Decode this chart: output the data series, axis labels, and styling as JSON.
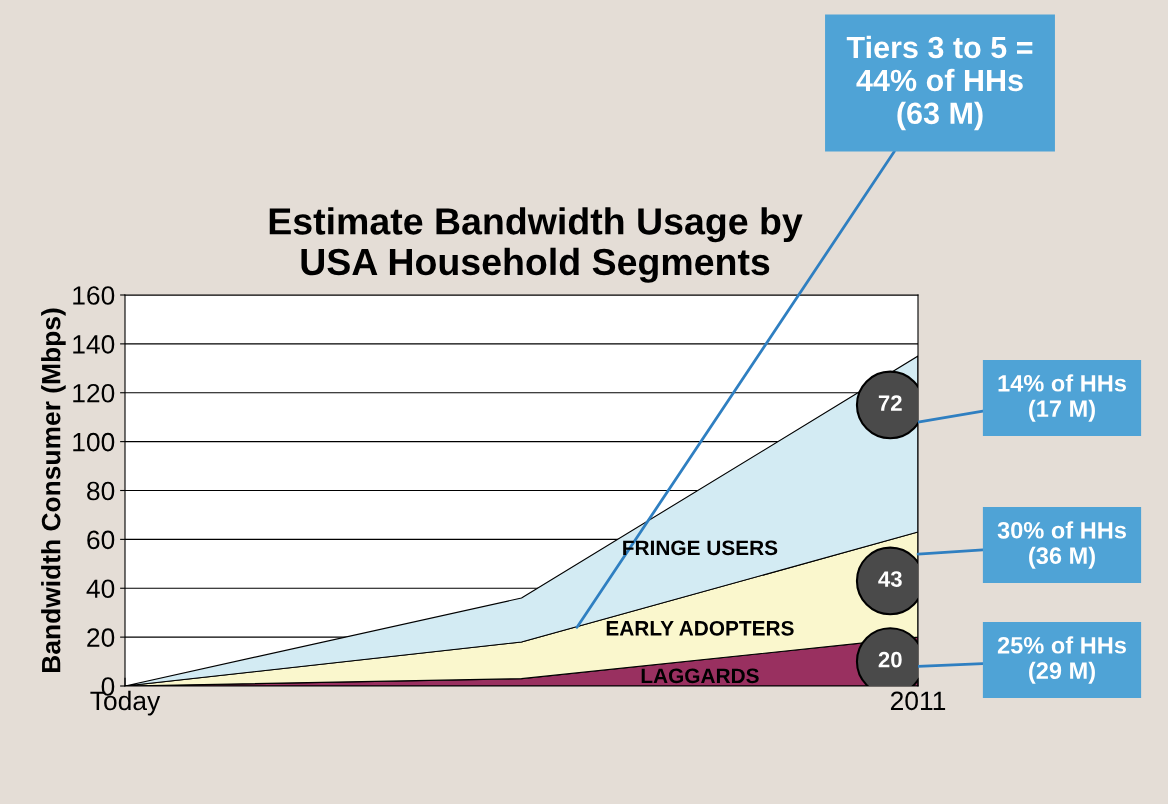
{
  "chart_data": {
    "type": "area",
    "stacked": true,
    "title": "Estimate Bandwidth Usage by\nUSA Household Segments",
    "ylabel": "Bandwidth Consumer (Mbps)",
    "categories": [
      "Today",
      null,
      "2011"
    ],
    "series": [
      {
        "name": "LAGGARDS",
        "color": "#993060",
        "values": [
          0,
          3,
          20
        ],
        "value_labels": [
          null,
          null,
          "20"
        ]
      },
      {
        "name": "EARLY ADOPTERS",
        "color": "#faf7cd",
        "values": [
          0,
          15,
          43
        ],
        "value_labels": [
          null,
          null,
          "43"
        ]
      },
      {
        "name": "FRINGE USERS",
        "color": "#d3ebf3",
        "values": [
          0,
          18,
          72
        ],
        "value_labels": [
          null,
          null,
          "72"
        ]
      }
    ],
    "ylim": [
      0,
      160
    ],
    "yticks": [
      0,
      20,
      40,
      60,
      80,
      100,
      120,
      140,
      160
    ],
    "grid": "y",
    "annotations": [
      {
        "text": "25% of HHs\n(29 M)",
        "x": "2011",
        "y": 8
      },
      {
        "text": "30% of HHs\n(36 M)",
        "x": "2011",
        "y": 54
      },
      {
        "text": "14% of HHs\n(17 M)",
        "x": "2011",
        "y": 108
      },
      "Tiers 3 to 5 =\n44% of HHs\n(63 M)"
    ]
  }
}
